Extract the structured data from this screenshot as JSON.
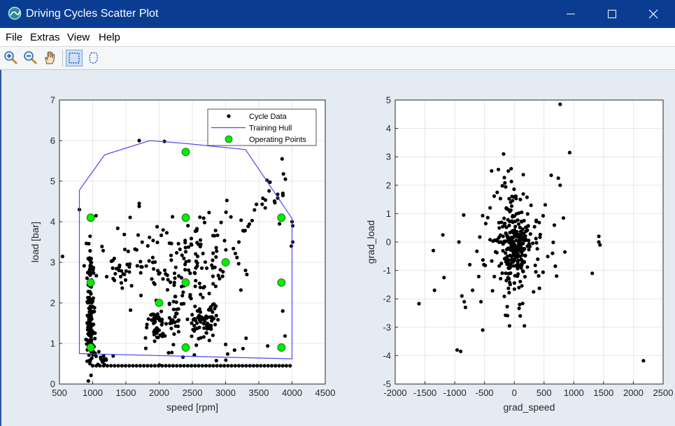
{
  "window": {
    "title": "Driving Cycles Scatter Plot",
    "icon": "matlab-figure-icon",
    "titlebar_color": "#0a3d91"
  },
  "menu": {
    "items": [
      {
        "label": "File"
      },
      {
        "label": "Extras"
      },
      {
        "label": "View"
      },
      {
        "label": "Help"
      }
    ]
  },
  "toolbar": {
    "tools": [
      "zoom-in-icon",
      "zoom-out-icon",
      "pan-hand-icon",
      "rectangle-select-icon",
      "lasso-select-icon"
    ],
    "active_tool": "rectangle-select-icon"
  },
  "chart_data": [
    {
      "type": "scatter",
      "xlabel": "speed [rpm]",
      "ylabel": "load [bar]",
      "xlim": [
        500,
        4500
      ],
      "ylim": [
        0,
        7
      ],
      "xticks": [
        500,
        1000,
        1500,
        2000,
        2500,
        3000,
        3500,
        4000,
        4500
      ],
      "yticks": [
        0,
        1,
        2,
        3,
        4,
        5,
        6,
        7
      ],
      "grid": true,
      "legend": {
        "placement": "top-right",
        "entries": [
          "Cycle Data",
          "Training Hull",
          "Operating Points"
        ]
      },
      "series": [
        {
          "name": "Cycle Data",
          "color": "#000000",
          "marker": "dot",
          "clusters": [
            {
              "cx": 965,
              "cy": 1.6,
              "sx": 25,
              "sy": 0.55,
              "n": 130
            },
            {
              "cx": 970,
              "cy": 2.8,
              "sx": 30,
              "sy": 0.5,
              "n": 30
            },
            {
              "cx": 1950,
              "cy": 1.45,
              "sx": 80,
              "sy": 0.2,
              "n": 45
            },
            {
              "cx": 2230,
              "cy": 1.55,
              "sx": 45,
              "sy": 0.25,
              "n": 25
            },
            {
              "cx": 2640,
              "cy": 1.5,
              "sx": 90,
              "sy": 0.2,
              "n": 55
            },
            {
              "cx": 2800,
              "cy": 1.8,
              "sx": 40,
              "sy": 0.2,
              "n": 15
            },
            {
              "cx": 2000,
              "cy": 3.05,
              "sx": 380,
              "sy": 0.45,
              "n": 60
            },
            {
              "cx": 2620,
              "cy": 3.1,
              "sx": 250,
              "sy": 0.45,
              "n": 55
            },
            {
              "cx": 1450,
              "cy": 2.9,
              "sx": 260,
              "sy": 0.35,
              "n": 30
            },
            {
              "cx": 2300,
              "cy": 2.4,
              "sx": 200,
              "sy": 0.4,
              "n": 30
            },
            {
              "cx": 3050,
              "cy": 3.9,
              "sx": 300,
              "sy": 0.25,
              "n": 20
            },
            {
              "cx": 3650,
              "cy": 4.6,
              "sx": 140,
              "sy": 0.2,
              "n": 15
            },
            {
              "cx": 2600,
              "cy": 0.8,
              "sx": 700,
              "sy": 0.15,
              "n": 15
            },
            {
              "cx": 1100,
              "cy": 0.65,
              "sx": 70,
              "sy": 0.1,
              "n": 15
            }
          ],
          "points": [
            {
              "x": 1700,
              "y": 6.0
            },
            {
              "x": 2080,
              "y": 5.98
            },
            {
              "x": 1700,
              "y": 4.45
            },
            {
              "x": 1700,
              "y": 4.38
            },
            {
              "x": 800,
              "y": 4.3
            },
            {
              "x": 1050,
              "y": 4.15
            },
            {
              "x": 3850,
              "y": 5.55
            },
            {
              "x": 3870,
              "y": 5.18
            },
            {
              "x": 3900,
              "y": 5.05
            },
            {
              "x": 4000,
              "y": 4.0
            },
            {
              "x": 4010,
              "y": 3.9
            },
            {
              "x": 4010,
              "y": 3.5
            },
            {
              "x": 3990,
              "y": 3.4
            },
            {
              "x": 3860,
              "y": 1.8
            },
            {
              "x": 3300,
              "y": 2.8
            },
            {
              "x": 3320,
              "y": 2.7
            },
            {
              "x": 3200,
              "y": 3.5
            }
          ],
          "baseline": {
            "y": 0.45,
            "x_from": 1000,
            "x_to": 4000,
            "step": 55
          }
        },
        {
          "name": "Training Hull",
          "color": "#4a4af0",
          "marker": "line",
          "x": [
            800,
            1180,
            1860,
            2400,
            3300,
            4000,
            4000,
            800,
            800
          ],
          "y": [
            4.78,
            5.65,
            6.0,
            5.93,
            5.78,
            4.08,
            0.62,
            0.75,
            4.78
          ]
        },
        {
          "name": "Operating Points",
          "color": "#00ee00",
          "marker": "circle",
          "x": [
            970,
            970,
            970,
            2400,
            2400,
            2400,
            2000,
            3000,
            3840,
            3840,
            3840,
            2400
          ],
          "y": [
            0.9,
            2.5,
            4.1,
            0.9,
            2.5,
            4.1,
            2.0,
            3.0,
            0.9,
            2.5,
            4.1,
            5.72
          ]
        }
      ]
    },
    {
      "type": "scatter",
      "xlabel": "grad_speed",
      "ylabel": "grad_load",
      "xlim": [
        -2000,
        2500
      ],
      "ylim": [
        -5,
        5
      ],
      "xticks": [
        -2000,
        -1500,
        -1000,
        -500,
        0,
        500,
        1000,
        1500,
        2000,
        2500
      ],
      "yticks": [
        -5,
        -4,
        -3,
        -2,
        -1,
        0,
        1,
        2,
        3,
        4,
        5
      ],
      "grid": true,
      "series": [
        {
          "color": "#000000",
          "marker": "dot",
          "clusters": [
            {
              "cx": 20,
              "cy": 0.0,
              "sx": 110,
              "sy": 0.55,
              "n": 160
            },
            {
              "cx": 0,
              "cy": 0.0,
              "sx": 280,
              "sy": 1.0,
              "n": 90
            },
            {
              "cx": -200,
              "cy": 0.0,
              "sx": 150,
              "sy": 0.05,
              "n": 15
            },
            {
              "cx": -50,
              "cy": 1.6,
              "sx": 180,
              "sy": 0.6,
              "n": 20
            },
            {
              "cx": 0,
              "cy": -1.5,
              "sx": 220,
              "sy": 0.6,
              "n": 25
            }
          ],
          "points": [
            {
              "x": 770,
              "y": 4.85
            },
            {
              "x": 930,
              "y": 3.15
            },
            {
              "x": 620,
              "y": 2.35
            },
            {
              "x": 740,
              "y": 2.25
            },
            {
              "x": 770,
              "y": 2.0
            },
            {
              "x": -180,
              "y": 3.1
            },
            {
              "x": -100,
              "y": 2.5
            },
            {
              "x": 1420,
              "y": 0.2
            },
            {
              "x": 1420,
              "y": 0.0
            },
            {
              "x": 1440,
              "y": -0.1
            },
            {
              "x": 1310,
              "y": -1.1
            },
            {
              "x": 2170,
              "y": -4.18
            },
            {
              "x": -1600,
              "y": -2.17
            },
            {
              "x": -1340,
              "y": -1.7
            },
            {
              "x": -1180,
              "y": -1.25
            },
            {
              "x": -1200,
              "y": 0.25
            },
            {
              "x": -1360,
              "y": -0.3
            },
            {
              "x": -960,
              "y": -3.8
            },
            {
              "x": -900,
              "y": -3.85
            },
            {
              "x": -530,
              "y": -3.1
            },
            {
              "x": -80,
              "y": -2.95
            },
            {
              "x": 170,
              "y": -2.95
            },
            {
              "x": 100,
              "y": -2.6
            },
            {
              "x": 90,
              "y": -2.2
            },
            {
              "x": -880,
              "y": -1.9
            },
            {
              "x": -840,
              "y": -2.1
            },
            {
              "x": -820,
              "y": -2.3
            },
            {
              "x": -700,
              "y": -1.7
            },
            {
              "x": -850,
              "y": 0.95
            },
            {
              "x": -930,
              "y": 0.0
            },
            {
              "x": -560,
              "y": -2.1
            },
            {
              "x": 690,
              "y": -0.85
            },
            {
              "x": 710,
              "y": -1.2
            },
            {
              "x": 850,
              "y": -0.35
            }
          ]
        }
      ]
    }
  ]
}
